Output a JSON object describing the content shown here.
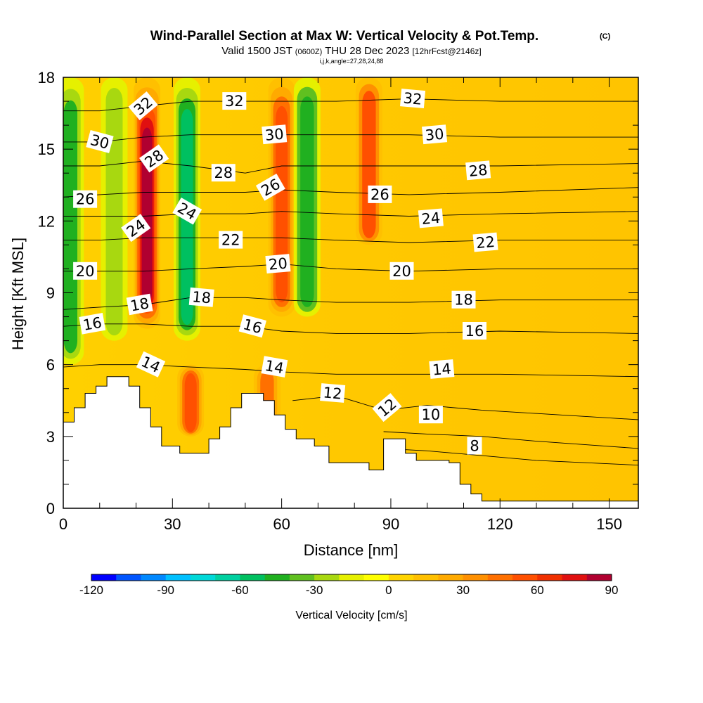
{
  "chart_data": {
    "type": "heatmap",
    "title": "Wind-Parallel Section at Max W: Vertical Velocity & Pot.Temp.",
    "copyright": "(C)",
    "subtitle_parts": {
      "valid": "Valid 1500 JST",
      "utc": "(0600Z)",
      "date": "THU 28 Dec 2023",
      "fcst": "[12hrFcst@2146z]"
    },
    "indices": "i,j,k,angle=27,28,24,88",
    "xlabel": "Distance [nm]",
    "ylabel": "Height [Kft MSL]",
    "xlim": [
      0,
      158
    ],
    "ylim": [
      0,
      18
    ],
    "x_ticks": [
      "0",
      "30",
      "60",
      "90",
      "120",
      "150"
    ],
    "x_tick_values": [
      0,
      30,
      60,
      90,
      120,
      150
    ],
    "x_minor_step": 10,
    "y_ticks": [
      "0",
      "3",
      "6",
      "9",
      "12",
      "15",
      "18"
    ],
    "y_tick_values": [
      0,
      3,
      6,
      9,
      12,
      15,
      18
    ],
    "y_minor_step": 1,
    "colorbar": {
      "label": "Vertical Velocity [cm/s]",
      "min": -120,
      "max": 90,
      "step": 10,
      "tick_labels": [
        "-120",
        "-90",
        "-60",
        "-30",
        "0",
        "30",
        "60",
        "90"
      ],
      "tick_values": [
        -120,
        -90,
        -60,
        -30,
        0,
        30,
        60,
        90
      ],
      "colors": [
        "#0000ff",
        "#0055ff",
        "#0088ff",
        "#00c0ff",
        "#00d8d8",
        "#00d0a0",
        "#00c060",
        "#20b020",
        "#60c020",
        "#a8d810",
        "#e6f000",
        "#ffff00",
        "#ffd400",
        "#ffc000",
        "#ffaa00",
        "#ff9000",
        "#ff7000",
        "#ff5000",
        "#f03000",
        "#e01010",
        "#b00030",
        "#900060",
        "#500090"
      ]
    },
    "terrain": [
      [
        0,
        3.6
      ],
      [
        3,
        3.6
      ],
      [
        3,
        4.2
      ],
      [
        6,
        4.2
      ],
      [
        6,
        4.8
      ],
      [
        9,
        4.8
      ],
      [
        9,
        5.1
      ],
      [
        12,
        5.1
      ],
      [
        12,
        5.5
      ],
      [
        18,
        5.5
      ],
      [
        18,
        5.1
      ],
      [
        21,
        5.1
      ],
      [
        21,
        4.2
      ],
      [
        24,
        4.2
      ],
      [
        24,
        3.4
      ],
      [
        27,
        3.4
      ],
      [
        27,
        2.6
      ],
      [
        32,
        2.6
      ],
      [
        32,
        2.3
      ],
      [
        40,
        2.3
      ],
      [
        40,
        2.9
      ],
      [
        43,
        2.9
      ],
      [
        43,
        3.4
      ],
      [
        46,
        3.4
      ],
      [
        46,
        4.2
      ],
      [
        49,
        4.2
      ],
      [
        49,
        4.8
      ],
      [
        55,
        4.8
      ],
      [
        55,
        4.5
      ],
      [
        58,
        4.5
      ],
      [
        58,
        3.9
      ],
      [
        61,
        3.9
      ],
      [
        61,
        3.3
      ],
      [
        64,
        3.3
      ],
      [
        64,
        2.9
      ],
      [
        69,
        2.9
      ],
      [
        69,
        2.6
      ],
      [
        73,
        2.6
      ],
      [
        73,
        1.9
      ],
      [
        84,
        1.9
      ],
      [
        84,
        1.6
      ],
      [
        88,
        1.6
      ],
      [
        88,
        2.9
      ],
      [
        94,
        2.9
      ],
      [
        94,
        2.3
      ],
      [
        97,
        2.3
      ],
      [
        97,
        2.0
      ],
      [
        100,
        2.0
      ],
      [
        100,
        2.0
      ],
      [
        106,
        2.0
      ],
      [
        106,
        1.9
      ],
      [
        109,
        1.9
      ],
      [
        109,
        1.0
      ],
      [
        112,
        1.0
      ],
      [
        112,
        0.6
      ],
      [
        115,
        0.6
      ],
      [
        115,
        0.3
      ],
      [
        158,
        0.3
      ]
    ],
    "updraft_bands": [
      {
        "x": 2,
        "y0": 6,
        "y1": 18,
        "w": -45
      },
      {
        "x": 14,
        "y0": 7,
        "y1": 18,
        "w": -30
      },
      {
        "x": 23,
        "y0": 7.5,
        "y1": 18,
        "w": 85
      },
      {
        "x": 34,
        "y0": 7,
        "y1": 18,
        "w": -55
      },
      {
        "x": 35,
        "y0": 3,
        "y1": 6,
        "w": 55
      },
      {
        "x": 60,
        "y0": 8,
        "y1": 18,
        "w": 55
      },
      {
        "x": 67,
        "y0": 8,
        "y1": 18,
        "w": -50
      },
      {
        "x": 84,
        "y0": 11,
        "y1": 18,
        "w": 50
      },
      {
        "x": 56,
        "y0": 3.5,
        "y1": 6,
        "w": 40
      }
    ],
    "isentropes": [
      {
        "value": 8,
        "x": [
          88,
          100,
          115,
          130,
          158
        ],
        "y": [
          2.5,
          2.4,
          2.2,
          2.0,
          1.8
        ]
      },
      {
        "value": 10,
        "x": [
          88,
          100,
          115,
          130,
          158
        ],
        "y": [
          3.2,
          3.1,
          3.0,
          2.8,
          2.5
        ]
      },
      {
        "value": 12,
        "x": [
          63,
          75,
          88,
          100,
          115,
          158
        ],
        "y": [
          4.5,
          4.7,
          4.1,
          4.3,
          4.1,
          3.7
        ]
      },
      {
        "value": 14,
        "x": [
          0,
          10,
          22,
          35,
          50,
          60,
          75,
          95,
          120,
          158
        ],
        "y": [
          5.9,
          6.0,
          6.0,
          5.9,
          5.8,
          5.7,
          5.6,
          5.6,
          5.6,
          5.5
        ]
      },
      {
        "value": 16,
        "x": [
          0,
          10,
          22,
          35,
          50,
          60,
          75,
          95,
          120,
          158
        ],
        "y": [
          7.6,
          7.7,
          7.7,
          7.6,
          7.6,
          7.4,
          7.3,
          7.3,
          7.4,
          7.3
        ]
      },
      {
        "value": 18,
        "x": [
          0,
          10,
          22,
          35,
          50,
          60,
          75,
          95,
          120,
          158
        ],
        "y": [
          8.3,
          8.4,
          8.5,
          8.8,
          8.8,
          8.7,
          8.6,
          8.6,
          8.7,
          8.7
        ]
      },
      {
        "value": 20,
        "x": [
          0,
          10,
          22,
          35,
          50,
          60,
          75,
          95,
          120,
          158
        ],
        "y": [
          9.9,
          9.9,
          9.9,
          10.0,
          10.1,
          10.2,
          10.0,
          9.9,
          10.0,
          10.0
        ]
      },
      {
        "value": 22,
        "x": [
          0,
          10,
          22,
          35,
          50,
          60,
          75,
          95,
          120,
          158
        ],
        "y": [
          11.2,
          11.2,
          11.3,
          11.3,
          11.3,
          11.3,
          11.2,
          11.1,
          11.2,
          11.2
        ]
      },
      {
        "value": 24,
        "x": [
          0,
          10,
          22,
          35,
          50,
          60,
          75,
          95,
          120,
          158
        ],
        "y": [
          12.2,
          12.2,
          12.2,
          12.3,
          12.3,
          12.4,
          12.3,
          12.2,
          12.3,
          12.4
        ]
      },
      {
        "value": 26,
        "x": [
          0,
          10,
          22,
          35,
          50,
          60,
          75,
          95,
          120,
          158
        ],
        "y": [
          13.0,
          13.1,
          13.2,
          13.2,
          13.2,
          13.3,
          13.2,
          13.1,
          13.2,
          13.4
        ]
      },
      {
        "value": 28,
        "x": [
          0,
          10,
          22,
          35,
          50,
          60,
          75,
          95,
          120,
          158
        ],
        "y": [
          14.3,
          14.3,
          14.5,
          14.3,
          14.0,
          14.3,
          14.3,
          14.3,
          14.3,
          14.4
        ]
      },
      {
        "value": 30,
        "x": [
          0,
          10,
          22,
          35,
          50,
          60,
          75,
          95,
          120,
          158
        ],
        "y": [
          15.3,
          15.3,
          15.5,
          15.6,
          15.6,
          15.6,
          15.6,
          15.6,
          15.5,
          15.5
        ]
      },
      {
        "value": 32,
        "x": [
          0,
          10,
          22,
          35,
          50,
          60,
          75,
          95,
          120,
          158
        ],
        "y": [
          16.6,
          16.6,
          16.8,
          17.0,
          17.0,
          17.0,
          17.0,
          17.1,
          17.0,
          17.0
        ]
      }
    ],
    "contour_labels": [
      {
        "text": "32",
        "x": 22,
        "y": 16.8,
        "rot": -40
      },
      {
        "text": "32",
        "x": 47,
        "y": 17.0,
        "rot": 0
      },
      {
        "text": "32",
        "x": 96,
        "y": 17.1,
        "rot": 5
      },
      {
        "text": "30",
        "x": 10,
        "y": 15.3,
        "rot": 15
      },
      {
        "text": "30",
        "x": 58,
        "y": 15.6,
        "rot": -5
      },
      {
        "text": "30",
        "x": 102,
        "y": 15.6,
        "rot": -5
      },
      {
        "text": "28",
        "x": 25,
        "y": 14.6,
        "rot": -35
      },
      {
        "text": "28",
        "x": 44,
        "y": 14.0,
        "rot": 0
      },
      {
        "text": "28",
        "x": 114,
        "y": 14.1,
        "rot": -5
      },
      {
        "text": "26",
        "x": 6,
        "y": 12.9,
        "rot": 0
      },
      {
        "text": "26",
        "x": 57,
        "y": 13.4,
        "rot": -30
      },
      {
        "text": "26",
        "x": 87,
        "y": 13.1,
        "rot": 0
      },
      {
        "text": "24",
        "x": 20,
        "y": 11.7,
        "rot": -35
      },
      {
        "text": "24",
        "x": 34,
        "y": 12.4,
        "rot": 30
      },
      {
        "text": "24",
        "x": 101,
        "y": 12.1,
        "rot": -5
      },
      {
        "text": "22",
        "x": 46,
        "y": 11.2,
        "rot": 0
      },
      {
        "text": "22",
        "x": 116,
        "y": 11.1,
        "rot": -5
      },
      {
        "text": "20",
        "x": 6,
        "y": 9.9,
        "rot": 0
      },
      {
        "text": "20",
        "x": 59,
        "y": 10.2,
        "rot": -5
      },
      {
        "text": "20",
        "x": 93,
        "y": 9.9,
        "rot": 0
      },
      {
        "text": "18",
        "x": 21,
        "y": 8.5,
        "rot": -10
      },
      {
        "text": "18",
        "x": 38,
        "y": 8.8,
        "rot": 5
      },
      {
        "text": "18",
        "x": 110,
        "y": 8.7,
        "rot": 0
      },
      {
        "text": "16",
        "x": 8,
        "y": 7.7,
        "rot": -10
      },
      {
        "text": "16",
        "x": 52,
        "y": 7.6,
        "rot": 15
      },
      {
        "text": "16",
        "x": 113,
        "y": 7.4,
        "rot": 0
      },
      {
        "text": "14",
        "x": 24,
        "y": 6.0,
        "rot": 25
      },
      {
        "text": "14",
        "x": 58,
        "y": 5.9,
        "rot": 10
      },
      {
        "text": "14",
        "x": 104,
        "y": 5.8,
        "rot": -5
      },
      {
        "text": "12",
        "x": 74,
        "y": 4.8,
        "rot": 5
      },
      {
        "text": "12",
        "x": 89,
        "y": 4.2,
        "rot": -40
      },
      {
        "text": "10",
        "x": 101,
        "y": 3.9,
        "rot": 0
      },
      {
        "text": "8",
        "x": 113,
        "y": 2.6,
        "rot": 0
      }
    ]
  }
}
